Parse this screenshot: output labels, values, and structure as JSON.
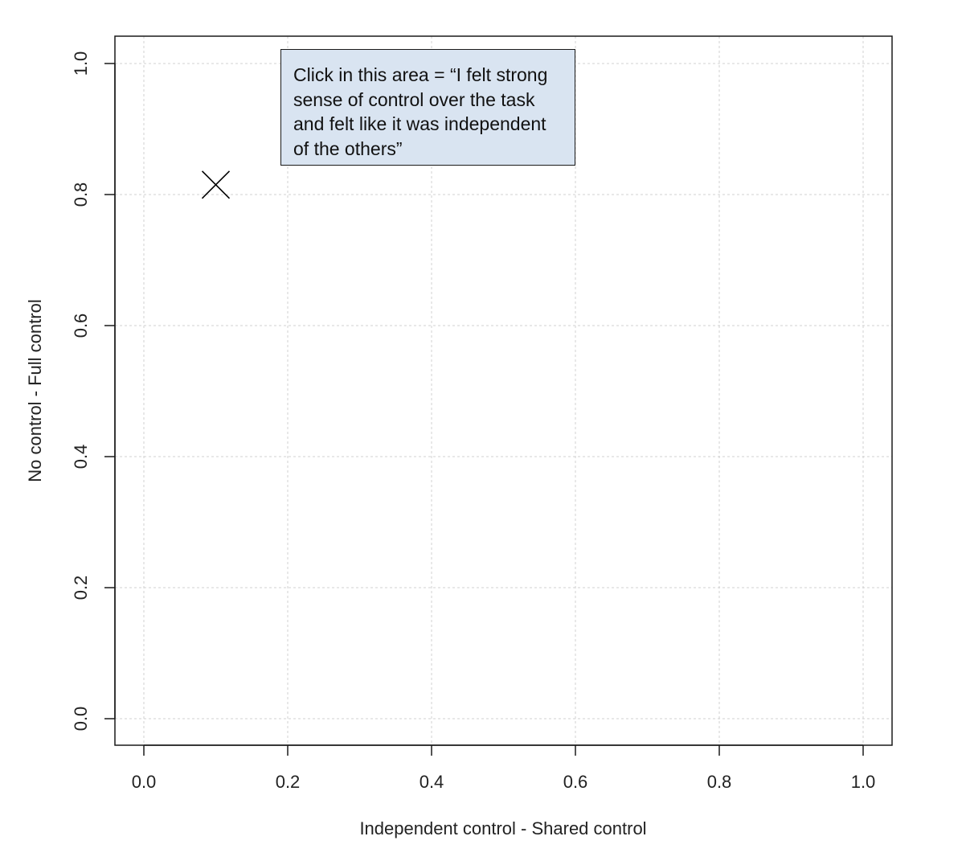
{
  "chart_data": {
    "type": "scatter",
    "title": "",
    "xlabel": "Independent control - Shared control",
    "ylabel": "No control - Full control",
    "xlim": [
      0.0,
      1.0
    ],
    "ylim": [
      0.0,
      1.0
    ],
    "x_ticks": [
      "0.0",
      "0.2",
      "0.4",
      "0.6",
      "0.8",
      "1.0"
    ],
    "y_ticks": [
      "0.0",
      "0.2",
      "0.4",
      "0.6",
      "0.8",
      "1.0"
    ],
    "grid": true,
    "marker": "x",
    "points": [
      {
        "x": 0.1,
        "y": 0.815
      }
    ],
    "annotation": "Click in this area = “I felt strong sense of control over the task and felt like it was independent of the others”"
  },
  "colors": {
    "grid": "#d0d0d0",
    "axis": "#1a1a1a",
    "annotation_fill": "#d9e4f1"
  }
}
